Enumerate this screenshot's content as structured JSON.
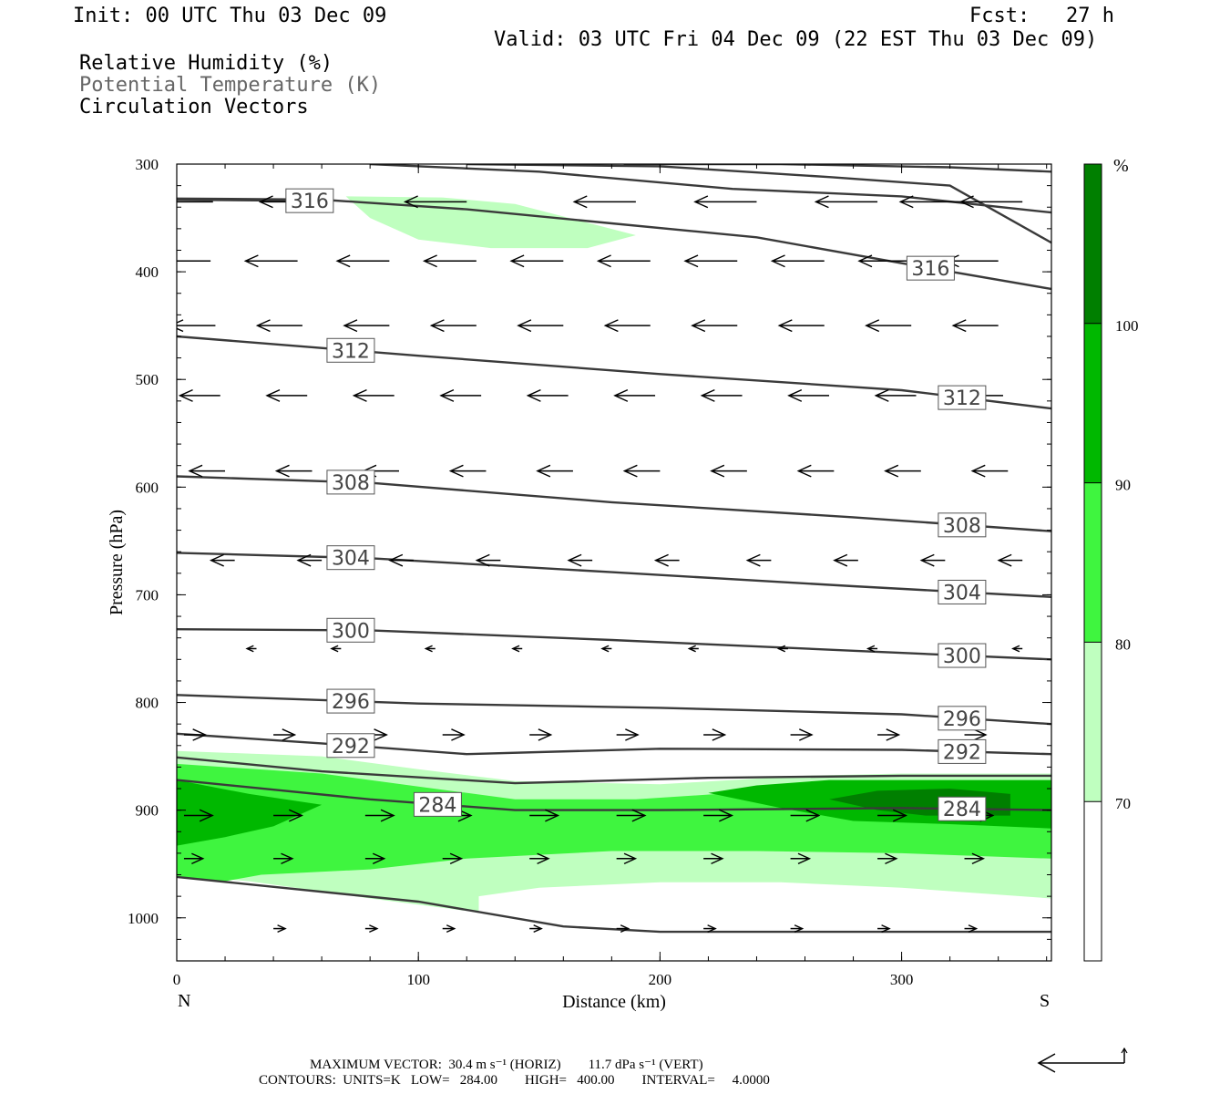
{
  "header": {
    "init": "Init: 00 UTC Thu 03 Dec 09",
    "fcst": "Fcst:   27 h",
    "valid": "Valid: 03 UTC Fri 04 Dec 09 (22 EST Thu 03 Dec 09)",
    "field1": "Relative Humidity (%)",
    "field2": "Potential Temperature (K)",
    "field3": "Circulation Vectors"
  },
  "footer": {
    "max_vector": "MAXIMUM VECTOR:  30.4 m s⁻¹ (HORIZ)        11.7 dPa s⁻¹ (VERT)",
    "contours": "CONTOURS:  UNITS=K   LOW=   284.00        HIGH=   400.00        INTERVAL=     4.0000"
  },
  "colors": {
    "rh70": "#bfffbf",
    "rh80": "#3ff53f",
    "rh90": "#00b800",
    "rh100": "#007f00",
    "theta": "#3a3a3a"
  },
  "chart_data": {
    "type": "contour",
    "xlabel": "Distance (km)",
    "ylabel": "Pressure (hPa)",
    "xlim": [
      0,
      362
    ],
    "ylim": [
      1040,
      300
    ],
    "x_ticks": [
      0,
      100,
      200,
      300
    ],
    "y_ticks": [
      300,
      400,
      500,
      600,
      700,
      800,
      900,
      1000
    ],
    "x_left_label": "N",
    "x_right_label": "S",
    "colorbar": {
      "unit": "%",
      "levels": [
        70,
        80,
        90,
        100
      ],
      "colors": [
        "#bfffbf",
        "#3ff53f",
        "#00b800",
        "#007f00"
      ]
    },
    "theta_contours": [
      {
        "label": "316",
        "points": [
          [
            0,
            332
          ],
          [
            60,
            333
          ],
          [
            120,
            342
          ],
          [
            180,
            355
          ],
          [
            240,
            368
          ],
          [
            300,
            392
          ],
          [
            362,
            416
          ]
        ]
      },
      {
        "label": "316",
        "points": [
          [
            0,
            333
          ],
          [
            50,
            334
          ]
        ]
      },
      {
        "label": "",
        "points": [
          [
            80,
            300
          ],
          [
            150,
            307
          ],
          [
            230,
            323
          ],
          [
            300,
            330
          ],
          [
            362,
            345
          ]
        ]
      },
      {
        "label": "",
        "points": [
          [
            120,
            300
          ],
          [
            200,
            302
          ],
          [
            270,
            312
          ],
          [
            320,
            320
          ],
          [
            362,
            373
          ]
        ]
      },
      {
        "label": "",
        "points": [
          [
            185,
            300
          ],
          [
            250,
            300
          ],
          [
            320,
            303
          ],
          [
            362,
            307
          ]
        ]
      },
      {
        "label": "312",
        "points": [
          [
            0,
            460
          ],
          [
            100,
            478
          ],
          [
            200,
            495
          ],
          [
            300,
            510
          ],
          [
            362,
            527
          ]
        ]
      },
      {
        "label": "308",
        "points": [
          [
            0,
            590
          ],
          [
            80,
            596
          ],
          [
            180,
            614
          ],
          [
            280,
            628
          ],
          [
            362,
            641
          ]
        ]
      },
      {
        "label": "304",
        "points": [
          [
            0,
            661
          ],
          [
            80,
            666
          ],
          [
            180,
            679
          ],
          [
            280,
            692
          ],
          [
            362,
            702
          ]
        ]
      },
      {
        "label": "300",
        "points": [
          [
            0,
            732
          ],
          [
            80,
            733
          ],
          [
            180,
            742
          ],
          [
            280,
            752
          ],
          [
            362,
            760
          ]
        ]
      },
      {
        "label": "296",
        "points": [
          [
            0,
            793
          ],
          [
            100,
            801
          ],
          [
            200,
            805
          ],
          [
            300,
            811
          ],
          [
            362,
            820
          ]
        ]
      },
      {
        "label": "292",
        "points": [
          [
            0,
            829
          ],
          [
            60,
            838
          ],
          [
            120,
            848
          ],
          [
            200,
            843
          ],
          [
            300,
            844
          ],
          [
            362,
            848
          ]
        ]
      },
      {
        "label": "",
        "points": [
          [
            0,
            851
          ],
          [
            60,
            864
          ],
          [
            140,
            875
          ],
          [
            220,
            870
          ],
          [
            300,
            868
          ],
          [
            362,
            868
          ]
        ]
      },
      {
        "label": "284",
        "points": [
          [
            0,
            872
          ],
          [
            80,
            890
          ],
          [
            140,
            900
          ],
          [
            200,
            900
          ],
          [
            300,
            898
          ],
          [
            362,
            900
          ]
        ]
      },
      {
        "label": "",
        "points": [
          [
            0,
            962
          ],
          [
            100,
            985
          ],
          [
            160,
            1008
          ],
          [
            200,
            1013
          ],
          [
            280,
            1013
          ],
          [
            362,
            1013
          ]
        ]
      }
    ],
    "rh_regions": [
      {
        "level": 70,
        "points": [
          [
            0,
            845
          ],
          [
            60,
            850
          ],
          [
            100,
            862
          ],
          [
            140,
            873
          ],
          [
            200,
            876
          ],
          [
            260,
            868
          ],
          [
            300,
            866
          ],
          [
            362,
            866
          ],
          [
            362,
            982
          ],
          [
            300,
            972
          ],
          [
            250,
            967
          ],
          [
            200,
            967
          ],
          [
            150,
            972
          ],
          [
            125,
            980
          ],
          [
            125,
            995
          ],
          [
            80,
            982
          ],
          [
            30,
            966
          ],
          [
            0,
            960
          ]
        ]
      },
      {
        "level": 80,
        "points": [
          [
            0,
            857
          ],
          [
            60,
            866
          ],
          [
            100,
            878
          ],
          [
            140,
            890
          ],
          [
            190,
            890
          ],
          [
            230,
            884
          ],
          [
            270,
            876
          ],
          [
            310,
            876
          ],
          [
            362,
            876
          ],
          [
            362,
            945
          ],
          [
            300,
            940
          ],
          [
            240,
            938
          ],
          [
            180,
            938
          ],
          [
            120,
            945
          ],
          [
            80,
            955
          ],
          [
            35,
            960
          ],
          [
            20,
            966
          ],
          [
            0,
            962
          ]
        ]
      },
      {
        "level": 90,
        "points": [
          [
            0,
            872
          ],
          [
            30,
            885
          ],
          [
            60,
            895
          ],
          [
            40,
            915
          ],
          [
            20,
            925
          ],
          [
            0,
            933
          ]
        ]
      },
      {
        "level": 90,
        "points": [
          [
            220,
            884
          ],
          [
            240,
            877
          ],
          [
            270,
            872
          ],
          [
            310,
            872
          ],
          [
            362,
            872
          ],
          [
            362,
            917
          ],
          [
            320,
            913
          ],
          [
            280,
            910
          ],
          [
            250,
            898
          ]
        ]
      },
      {
        "level": 100,
        "points": [
          [
            270,
            890
          ],
          [
            290,
            882
          ],
          [
            320,
            880
          ],
          [
            345,
            885
          ],
          [
            345,
            905
          ],
          [
            310,
            905
          ],
          [
            290,
            900
          ]
        ]
      }
    ],
    "rh_region_upper": {
      "level": 70,
      "points": [
        [
          70,
          330
        ],
        [
          110,
          331
        ],
        [
          140,
          337
        ],
        [
          190,
          366
        ],
        [
          170,
          378
        ],
        [
          130,
          378
        ],
        [
          100,
          370
        ],
        [
          80,
          350
        ]
      ]
    },
    "wind_vectors": [
      {
        "p": 335,
        "y": [
          15,
          60,
          120,
          190,
          240,
          290,
          325,
          350
        ],
        "dx": -26,
        "dy": 0
      },
      {
        "p": 390,
        "y": [
          14,
          50,
          88,
          124,
          160,
          196,
          232,
          268,
          304,
          340
        ],
        "dx": -22,
        "dy": 0
      },
      {
        "p": 450,
        "y": [
          16,
          52,
          88,
          124,
          160,
          196,
          232,
          268,
          304,
          340
        ],
        "dx": -19,
        "dy": 0
      },
      {
        "p": 515,
        "y": [
          18,
          54,
          90,
          126,
          162,
          198,
          234,
          270,
          306,
          342
        ],
        "dx": -17,
        "dy": 0
      },
      {
        "p": 585,
        "y": [
          20,
          56,
          92,
          128,
          164,
          200,
          236,
          272,
          308,
          344
        ],
        "dx": -15,
        "dy": 0
      },
      {
        "p": 668,
        "y": [
          24,
          60,
          98,
          134,
          172,
          208,
          246,
          282,
          318,
          350
        ],
        "dx": -10,
        "dy": 0
      },
      {
        "p": 750,
        "y": [
          33,
          68,
          107,
          143,
          180,
          216,
          253,
          290,
          325,
          350
        ],
        "dx": -4,
        "dy": 0
      },
      {
        "p": 830,
        "y": [
          3,
          40,
          78,
          110,
          146,
          182,
          218,
          254,
          290,
          326
        ],
        "dx": 9,
        "dy": 0
      },
      {
        "p": 905,
        "y": [
          3,
          40,
          78,
          110,
          146,
          182,
          218,
          254,
          290,
          326
        ],
        "dx": 12,
        "dy": 0
      },
      {
        "p": 945,
        "y": [
          3,
          40,
          78,
          110,
          146,
          182,
          218,
          254,
          290,
          326
        ],
        "dx": 8,
        "dy": 0
      },
      {
        "p": 1010,
        "y": [
          40,
          78,
          110,
          146,
          182,
          218,
          254,
          290,
          326
        ],
        "dx": 5,
        "dy": 0
      }
    ]
  }
}
